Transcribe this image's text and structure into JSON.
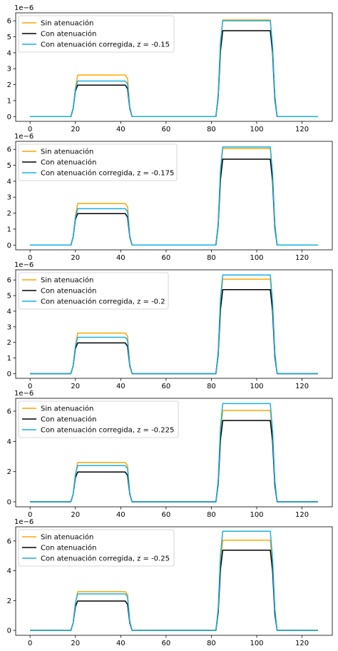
{
  "colors": {
    "sin": "#ffa500",
    "con": "#000000",
    "corr": "#1ab0e0",
    "axis": "#000000",
    "legend_border": "#cccccc"
  },
  "chart_data": [
    {
      "type": "line",
      "offset_label": "1e−6",
      "xlim": [
        -6.35,
        133.35
      ],
      "ylim": [
        -0.3,
        6.5
      ],
      "xticks": [
        {
          "value": 0,
          "label": "0"
        },
        {
          "value": 20,
          "label": "20"
        },
        {
          "value": 40,
          "label": "40"
        },
        {
          "value": 60,
          "label": "60"
        },
        {
          "value": 80,
          "label": "80"
        },
        {
          "value": 100,
          "label": "100"
        },
        {
          "value": 120,
          "label": "120"
        }
      ],
      "yticks": [
        {
          "value": 0,
          "label": "0"
        },
        {
          "value": 1,
          "label": "1"
        },
        {
          "value": 2,
          "label": "2"
        },
        {
          "value": 3,
          "label": "3"
        },
        {
          "value": 4,
          "label": "4"
        },
        {
          "value": 5,
          "label": "5"
        },
        {
          "value": 6,
          "label": "6"
        }
      ],
      "legend_position": "top-left",
      "grid": false,
      "series": [
        {
          "name": "Sin atenuación",
          "color_key": "sin",
          "x": [
            0,
            18,
            19,
            20,
            21,
            42,
            43,
            44,
            45,
            82,
            83,
            84,
            85,
            106,
            107,
            108,
            109,
            127
          ],
          "y": [
            0,
            0,
            0.5,
            1.8,
            2.6,
            2.6,
            2.4,
            0.6,
            0,
            0,
            1.4,
            4.6,
            6.05,
            6.05,
            4.3,
            1.3,
            0,
            0
          ]
        },
        {
          "name": "Con atenuación",
          "color_key": "con",
          "x": [
            0,
            18,
            19,
            20,
            21,
            42,
            43,
            44,
            45,
            82,
            83,
            84,
            85,
            106,
            107,
            108,
            109,
            127
          ],
          "y": [
            0,
            0,
            0.5,
            1.6,
            1.97,
            1.97,
            1.75,
            0.5,
            0,
            0,
            1.2,
            4.1,
            5.38,
            5.38,
            4.0,
            1.1,
            0,
            0
          ]
        },
        {
          "name": "Con atenuación corregida, z = -0.15",
          "color_key": "corr",
          "x": [
            0,
            18,
            19,
            20,
            21,
            42,
            43,
            44,
            45,
            82,
            83,
            84,
            85,
            106,
            107,
            108,
            109,
            127
          ],
          "y": [
            0,
            0,
            0.5,
            1.7,
            2.23,
            2.23,
            2.05,
            0.55,
            0,
            0,
            1.3,
            4.6,
            6.0,
            6.0,
            4.4,
            1.3,
            0,
            0
          ]
        }
      ]
    },
    {
      "type": "line",
      "offset_label": "1e−6",
      "xlim": [
        -6.35,
        133.35
      ],
      "ylim": [
        -0.3,
        6.5
      ],
      "xticks": [
        {
          "value": 0,
          "label": "0"
        },
        {
          "value": 20,
          "label": "20"
        },
        {
          "value": 40,
          "label": "40"
        },
        {
          "value": 60,
          "label": "60"
        },
        {
          "value": 80,
          "label": "80"
        },
        {
          "value": 100,
          "label": "100"
        },
        {
          "value": 120,
          "label": "120"
        }
      ],
      "yticks": [
        {
          "value": 0,
          "label": "0"
        },
        {
          "value": 1,
          "label": "1"
        },
        {
          "value": 2,
          "label": "2"
        },
        {
          "value": 3,
          "label": "3"
        },
        {
          "value": 4,
          "label": "4"
        },
        {
          "value": 5,
          "label": "5"
        },
        {
          "value": 6,
          "label": "6"
        }
      ],
      "legend_position": "top-left",
      "grid": false,
      "series": [
        {
          "name": "Sin atenuación",
          "color_key": "sin",
          "x": [
            0,
            18,
            19,
            20,
            21,
            42,
            43,
            44,
            45,
            82,
            83,
            84,
            85,
            106,
            107,
            108,
            109,
            127
          ],
          "y": [
            0,
            0,
            0.5,
            1.8,
            2.6,
            2.6,
            2.4,
            0.6,
            0,
            0,
            1.4,
            4.6,
            6.05,
            6.05,
            4.3,
            1.3,
            0,
            0
          ]
        },
        {
          "name": "Con atenuación",
          "color_key": "con",
          "x": [
            0,
            18,
            19,
            20,
            21,
            42,
            43,
            44,
            45,
            82,
            83,
            84,
            85,
            106,
            107,
            108,
            109,
            127
          ],
          "y": [
            0,
            0,
            0.5,
            1.6,
            1.97,
            1.97,
            1.75,
            0.5,
            0,
            0,
            1.2,
            4.1,
            5.38,
            5.38,
            4.0,
            1.1,
            0,
            0
          ]
        },
        {
          "name": "Con atenuación corregida, z = -0.175",
          "color_key": "corr",
          "x": [
            0,
            18,
            19,
            20,
            21,
            42,
            43,
            44,
            45,
            82,
            83,
            84,
            85,
            106,
            107,
            108,
            109,
            127
          ],
          "y": [
            0,
            0,
            0.5,
            1.7,
            2.28,
            2.28,
            2.1,
            0.55,
            0,
            0,
            1.3,
            4.7,
            6.15,
            6.15,
            4.5,
            1.3,
            0,
            0
          ]
        }
      ]
    },
    {
      "type": "line",
      "offset_label": "1e−6",
      "xlim": [
        -6.35,
        133.35
      ],
      "ylim": [
        -0.3,
        6.65
      ],
      "xticks": [
        {
          "value": 0,
          "label": "0"
        },
        {
          "value": 20,
          "label": "20"
        },
        {
          "value": 40,
          "label": "40"
        },
        {
          "value": 60,
          "label": "60"
        },
        {
          "value": 80,
          "label": "80"
        },
        {
          "value": 100,
          "label": "100"
        },
        {
          "value": 120,
          "label": "120"
        }
      ],
      "yticks": [
        {
          "value": 0,
          "label": "0"
        },
        {
          "value": 1,
          "label": "1"
        },
        {
          "value": 2,
          "label": "2"
        },
        {
          "value": 3,
          "label": "3"
        },
        {
          "value": 4,
          "label": "4"
        },
        {
          "value": 5,
          "label": "5"
        },
        {
          "value": 6,
          "label": "6"
        }
      ],
      "legend_position": "top-left",
      "grid": false,
      "series": [
        {
          "name": "Sin atenuación",
          "color_key": "sin",
          "x": [
            0,
            18,
            19,
            20,
            21,
            42,
            43,
            44,
            45,
            82,
            83,
            84,
            85,
            106,
            107,
            108,
            109,
            127
          ],
          "y": [
            0,
            0,
            0.5,
            1.8,
            2.6,
            2.6,
            2.4,
            0.6,
            0,
            0,
            1.4,
            4.6,
            6.05,
            6.05,
            4.3,
            1.3,
            0,
            0
          ]
        },
        {
          "name": "Con atenuación",
          "color_key": "con",
          "x": [
            0,
            18,
            19,
            20,
            21,
            42,
            43,
            44,
            45,
            82,
            83,
            84,
            85,
            106,
            107,
            108,
            109,
            127
          ],
          "y": [
            0,
            0,
            0.5,
            1.6,
            1.97,
            1.97,
            1.75,
            0.5,
            0,
            0,
            1.2,
            4.1,
            5.38,
            5.38,
            4.0,
            1.1,
            0,
            0
          ]
        },
        {
          "name": "Con atenuación corregida, z = -0.2",
          "color_key": "corr",
          "x": [
            0,
            18,
            19,
            20,
            21,
            42,
            43,
            44,
            45,
            82,
            83,
            84,
            85,
            106,
            107,
            108,
            109,
            127
          ],
          "y": [
            0,
            0,
            0.5,
            1.75,
            2.33,
            2.33,
            2.15,
            0.55,
            0,
            0,
            1.35,
            4.8,
            6.32,
            6.32,
            4.6,
            1.35,
            0,
            0
          ]
        }
      ]
    },
    {
      "type": "line",
      "offset_label": "1e−6",
      "xlim": [
        -6.35,
        133.35
      ],
      "ylim": [
        -0.33,
        6.85
      ],
      "xticks": [
        {
          "value": 0,
          "label": "0"
        },
        {
          "value": 20,
          "label": "20"
        },
        {
          "value": 40,
          "label": "40"
        },
        {
          "value": 60,
          "label": "60"
        },
        {
          "value": 80,
          "label": "80"
        },
        {
          "value": 100,
          "label": "100"
        },
        {
          "value": 120,
          "label": "120"
        }
      ],
      "yticks": [
        {
          "value": 0,
          "label": "0"
        },
        {
          "value": 2,
          "label": "2"
        },
        {
          "value": 4,
          "label": "4"
        },
        {
          "value": 6,
          "label": "6"
        }
      ],
      "legend_position": "top-left",
      "grid": false,
      "series": [
        {
          "name": "Sin atenuación",
          "color_key": "sin",
          "x": [
            0,
            18,
            19,
            20,
            21,
            42,
            43,
            44,
            45,
            82,
            83,
            84,
            85,
            106,
            107,
            108,
            109,
            127
          ],
          "y": [
            0,
            0,
            0.5,
            1.8,
            2.6,
            2.6,
            2.4,
            0.6,
            0,
            0,
            1.4,
            4.6,
            6.05,
            6.05,
            4.3,
            1.3,
            0,
            0
          ]
        },
        {
          "name": "Con atenuación",
          "color_key": "con",
          "x": [
            0,
            18,
            19,
            20,
            21,
            42,
            43,
            44,
            45,
            82,
            83,
            84,
            85,
            106,
            107,
            108,
            109,
            127
          ],
          "y": [
            0,
            0,
            0.5,
            1.6,
            1.97,
            1.97,
            1.75,
            0.5,
            0,
            0,
            1.2,
            4.1,
            5.38,
            5.38,
            4.0,
            1.1,
            0,
            0
          ]
        },
        {
          "name": "Con atenuación corregida, z = -0.225",
          "color_key": "corr",
          "x": [
            0,
            18,
            19,
            20,
            21,
            42,
            43,
            44,
            45,
            82,
            83,
            84,
            85,
            106,
            107,
            108,
            109,
            127
          ],
          "y": [
            0,
            0,
            0.5,
            1.8,
            2.4,
            2.4,
            2.2,
            0.55,
            0,
            0,
            1.4,
            4.9,
            6.5,
            6.5,
            4.7,
            1.4,
            0,
            0
          ]
        }
      ]
    },
    {
      "type": "line",
      "offset_label": "1e−6",
      "xlim": [
        -6.35,
        133.35
      ],
      "ylim": [
        -0.33,
        6.95
      ],
      "xticks": [
        {
          "value": 0,
          "label": "0"
        },
        {
          "value": 20,
          "label": "20"
        },
        {
          "value": 40,
          "label": "40"
        },
        {
          "value": 60,
          "label": "60"
        },
        {
          "value": 80,
          "label": "80"
        },
        {
          "value": 100,
          "label": "100"
        },
        {
          "value": 120,
          "label": "120"
        }
      ],
      "yticks": [
        {
          "value": 0,
          "label": "0"
        },
        {
          "value": 2,
          "label": "2"
        },
        {
          "value": 4,
          "label": "4"
        },
        {
          "value": 6,
          "label": "6"
        }
      ],
      "legend_position": "top-left",
      "grid": false,
      "series": [
        {
          "name": "Sin atenuación",
          "color_key": "sin",
          "x": [
            0,
            18,
            19,
            20,
            21,
            42,
            43,
            44,
            45,
            82,
            83,
            84,
            85,
            106,
            107,
            108,
            109,
            127
          ],
          "y": [
            0,
            0,
            0.5,
            1.8,
            2.6,
            2.6,
            2.4,
            0.6,
            0,
            0,
            1.4,
            4.6,
            6.05,
            6.05,
            4.3,
            1.3,
            0,
            0
          ]
        },
        {
          "name": "Con atenuación",
          "color_key": "con",
          "x": [
            0,
            18,
            19,
            20,
            21,
            42,
            43,
            44,
            45,
            82,
            83,
            84,
            85,
            106,
            107,
            108,
            109,
            127
          ],
          "y": [
            0,
            0,
            0.5,
            1.6,
            1.97,
            1.97,
            1.75,
            0.5,
            0,
            0,
            1.2,
            4.1,
            5.38,
            5.38,
            4.0,
            1.1,
            0,
            0
          ]
        },
        {
          "name": "Con atenuación corregida, z = -0.25",
          "color_key": "corr",
          "x": [
            0,
            18,
            19,
            20,
            21,
            42,
            43,
            44,
            45,
            82,
            83,
            84,
            85,
            106,
            107,
            108,
            109,
            127
          ],
          "y": [
            0,
            0,
            0.5,
            1.85,
            2.45,
            2.45,
            2.25,
            0.6,
            0,
            0,
            1.45,
            5.0,
            6.65,
            6.65,
            4.8,
            1.45,
            0,
            0
          ]
        }
      ]
    }
  ]
}
